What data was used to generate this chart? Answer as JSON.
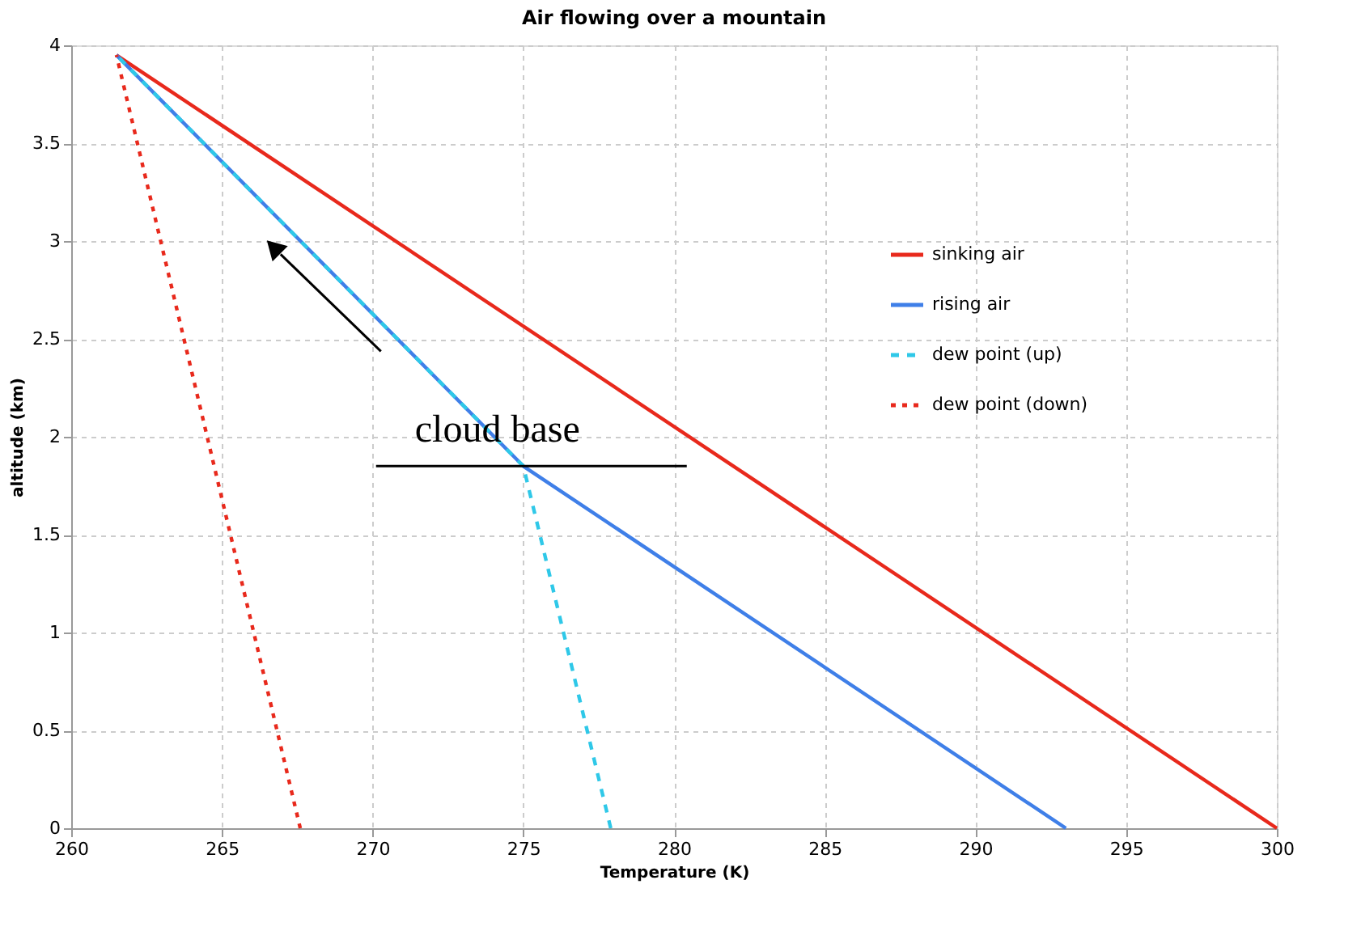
{
  "chart_data": {
    "type": "line",
    "title": "Air flowing over a mountain",
    "xlabel": "Temperature (K)",
    "ylabel": "altitude (km)",
    "xlim": [
      260,
      300
    ],
    "xticks": [
      260,
      265,
      270,
      275,
      280,
      285,
      290,
      295,
      300
    ],
    "ylim": [
      0,
      4
    ],
    "yticks": [
      0,
      0.5,
      1,
      1.5,
      2,
      2.5,
      3,
      3.5,
      4
    ],
    "grid": true,
    "legend": "right",
    "marker": "none",
    "series": [
      {
        "name": "sinking air",
        "color": "#e8291c",
        "line_style": "solid",
        "x": [
          261.5,
          300
        ],
        "values": [
          3.95,
          0
        ]
      },
      {
        "name": "rising air",
        "color": "#3f7fe8",
        "line_style": "solid",
        "x": [
          293,
          275,
          261.5
        ],
        "values": [
          0,
          1.85,
          3.95
        ]
      },
      {
        "name": "dew point (up)",
        "color": "#2fc8e8",
        "line_style": "dashed",
        "x": [
          277.9,
          275,
          261.5
        ],
        "values": [
          0,
          1.85,
          3.95
        ]
      },
      {
        "name": "dew point (down)",
        "color": "#e8291c",
        "line_style": "dotted",
        "x": [
          267.6,
          261.5
        ],
        "values": [
          0,
          3.95
        ]
      }
    ],
    "annotations": [
      {
        "text": "cloud base",
        "x": 275,
        "y": 1.85
      }
    ]
  }
}
